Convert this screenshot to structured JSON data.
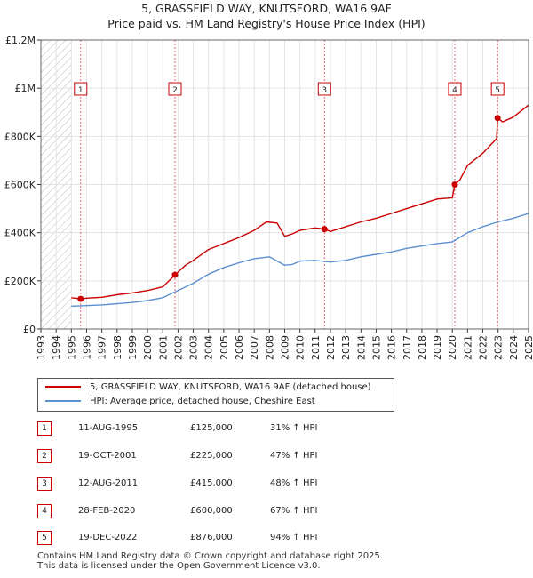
{
  "chart_data": {
    "type": "line",
    "title": "5, GRASSFIELD WAY, KNUTSFORD, WA16 9AF",
    "subtitle": "Price paid vs. HM Land Registry's House Price Index (HPI)",
    "xlim": [
      1993,
      2025
    ],
    "ylim": [
      0,
      1200000
    ],
    "y_ticks": [
      0,
      200000,
      400000,
      600000,
      800000,
      1000000,
      1200000
    ],
    "y_tick_labels": [
      "£0",
      "£200K",
      "£400K",
      "£600K",
      "£800K",
      "£1M",
      "£1.2M"
    ],
    "x_ticks": [
      1993,
      1994,
      1995,
      1996,
      1997,
      1998,
      1999,
      2000,
      2001,
      2002,
      2003,
      2004,
      2005,
      2006,
      2007,
      2008,
      2009,
      2010,
      2011,
      2012,
      2013,
      2014,
      2015,
      2016,
      2017,
      2018,
      2019,
      2020,
      2021,
      2022,
      2023,
      2024,
      2025
    ],
    "x_tick_labels": [
      "1993",
      "1994",
      "1995",
      "1996",
      "1997",
      "1998",
      "1999",
      "2000",
      "2001",
      "2002",
      "2003",
      "2004",
      "2005",
      "2006",
      "2007",
      "2008",
      "2009",
      "2010",
      "2011",
      "2012",
      "2013",
      "2014",
      "2015",
      "2016",
      "2017",
      "2018",
      "2019",
      "2020",
      "2021",
      "2022",
      "2023",
      "2024",
      "2025"
    ],
    "grid": true,
    "hatched_region": [
      1993,
      1995.0
    ],
    "series": [
      {
        "name": "5, GRASSFIELD WAY, KNUTSFORD, WA16 9AF (detached house)",
        "color": "#cc0000",
        "x": [
          1995.0,
          1995.6,
          1996,
          1997,
          1998,
          1999,
          2000,
          2001,
          2001.8,
          2002.5,
          2003,
          2004,
          2005,
          2006,
          2007,
          2007.8,
          2008.5,
          2009,
          2009.5,
          2010,
          2011,
          2011.6,
          2012,
          2013,
          2014,
          2015,
          2016,
          2017,
          2018,
          2019,
          2020.0,
          2020.16,
          2020.5,
          2021,
          2022,
          2022.9,
          2022.97,
          2023.3,
          2024,
          2025
        ],
        "y": [
          130000,
          125000,
          128000,
          132000,
          142000,
          150000,
          160000,
          175000,
          225000,
          265000,
          285000,
          330000,
          355000,
          380000,
          410000,
          445000,
          440000,
          385000,
          395000,
          410000,
          420000,
          415000,
          405000,
          425000,
          445000,
          460000,
          480000,
          500000,
          520000,
          540000,
          545000,
          600000,
          620000,
          680000,
          730000,
          790000,
          876000,
          860000,
          880000,
          930000
        ]
      },
      {
        "name": "HPI: Average price, detached house, Cheshire East",
        "color": "#5b8fd0",
        "x": [
          1995.0,
          1996,
          1997,
          1998,
          1999,
          2000,
          2001,
          2002,
          2003,
          2004,
          2005,
          2006,
          2007,
          2008,
          2009,
          2009.5,
          2010,
          2011,
          2012,
          2013,
          2014,
          2015,
          2016,
          2017,
          2018,
          2019,
          2020,
          2021,
          2022,
          2023,
          2024,
          2025
        ],
        "y": [
          95000,
          97000,
          100000,
          105000,
          110000,
          118000,
          130000,
          160000,
          190000,
          228000,
          255000,
          275000,
          292000,
          300000,
          265000,
          268000,
          282000,
          285000,
          278000,
          285000,
          300000,
          310000,
          320000,
          335000,
          345000,
          355000,
          362000,
          400000,
          425000,
          445000,
          460000,
          480000
        ]
      }
    ],
    "sales_markers": [
      {
        "label": "1",
        "x": 1995.61,
        "y": 125000
      },
      {
        "label": "2",
        "x": 2001.8,
        "y": 225000
      },
      {
        "label": "3",
        "x": 2011.61,
        "y": 415000
      },
      {
        "label": "4",
        "x": 2020.16,
        "y": 600000
      },
      {
        "label": "5",
        "x": 2022.97,
        "y": 876000
      }
    ]
  },
  "legend": {
    "items": [
      {
        "label": "5, GRASSFIELD WAY, KNUTSFORD, WA16 9AF (detached house)",
        "color": "#cc0000"
      },
      {
        "label": "HPI: Average price, detached house, Cheshire East",
        "color": "#5b8fd0"
      }
    ]
  },
  "sales": [
    {
      "num": "1",
      "date": "11-AUG-1995",
      "price": "£125,000",
      "hpi": "31% ↑ HPI"
    },
    {
      "num": "2",
      "date": "19-OCT-2001",
      "price": "£225,000",
      "hpi": "47% ↑ HPI"
    },
    {
      "num": "3",
      "date": "12-AUG-2011",
      "price": "£415,000",
      "hpi": "48% ↑ HPI"
    },
    {
      "num": "4",
      "date": "28-FEB-2020",
      "price": "£600,000",
      "hpi": "67% ↑ HPI"
    },
    {
      "num": "5",
      "date": "19-DEC-2022",
      "price": "£876,000",
      "hpi": "94% ↑ HPI"
    }
  ],
  "footer": {
    "line1": "Contains HM Land Registry data © Crown copyright and database right 2025.",
    "line2": "This data is licensed under the Open Government Licence v3.0."
  }
}
